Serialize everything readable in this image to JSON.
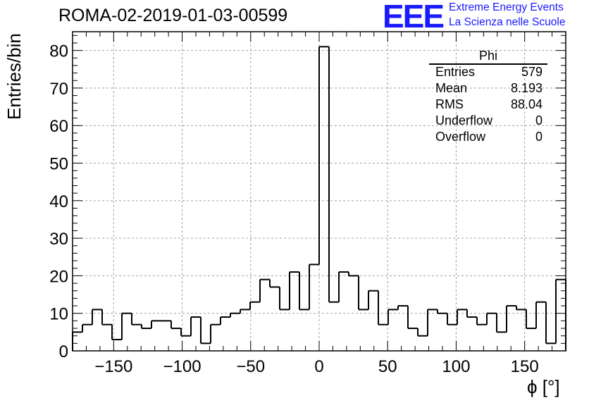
{
  "header": {
    "run_title": "ROMA-02-2019-01-03-00599",
    "logo_text": "EEE",
    "logo_line_1": "Extreme Energy Events",
    "logo_line_2": "La Scienza nelle Scuole"
  },
  "colors": {
    "logo": "#1a1aff",
    "grid": "#a0a0a0",
    "histogram": "#000000"
  },
  "stats": {
    "title": "Phi",
    "rows": [
      {
        "label": "Entries",
        "value": "579"
      },
      {
        "label": "Mean",
        "value": "8.193"
      },
      {
        "label": "RMS",
        "value": "88.04"
      },
      {
        "label": "Underflow",
        "value": "0"
      },
      {
        "label": "Overflow",
        "value": "0"
      }
    ]
  },
  "chart_data": {
    "type": "histogram",
    "xlabel": "ϕ [°]",
    "ylabel": "Entries/bin",
    "xlim": [
      -180,
      180
    ],
    "ylim": [
      0,
      85
    ],
    "bin_width": 7.2,
    "x_ticks": [
      -150,
      -100,
      -50,
      0,
      50,
      100,
      150
    ],
    "x_tick_labels": [
      "−150",
      "−100",
      "−50",
      "0",
      "50",
      "100",
      "150"
    ],
    "y_ticks": [
      0,
      10,
      20,
      30,
      40,
      50,
      60,
      70,
      80
    ],
    "y_tick_labels": [
      "0",
      "10",
      "20",
      "30",
      "40",
      "50",
      "60",
      "70",
      "80"
    ],
    "grid": true,
    "values": [
      5,
      7,
      11,
      7,
      3,
      10,
      7,
      6,
      8,
      8,
      6,
      4,
      9,
      2,
      7,
      9,
      10,
      11,
      13,
      19,
      17,
      11,
      21,
      11,
      23,
      81,
      13,
      21,
      20,
      11,
      16,
      7,
      11,
      12,
      6,
      4,
      11,
      10,
      7,
      11,
      9,
      7,
      10,
      5,
      12,
      11,
      6,
      13,
      2,
      19
    ]
  }
}
